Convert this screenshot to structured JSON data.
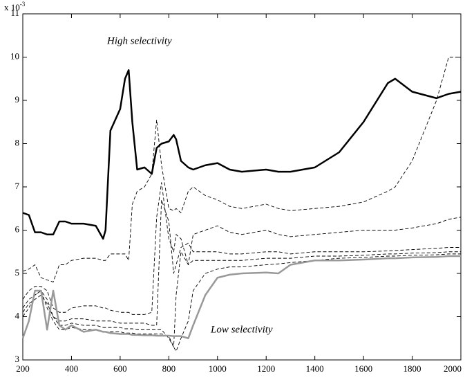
{
  "chart_data": {
    "type": "line",
    "axis_multiplier": {
      "base": "x 10",
      "exponent": "-3"
    },
    "annotations": [
      "High selectivity",
      "Low selectivity"
    ],
    "x": [
      200,
      225,
      250,
      275,
      300,
      325,
      350,
      375,
      400,
      450,
      500,
      530,
      540,
      560,
      600,
      620,
      635,
      650,
      670,
      700,
      730,
      750,
      770,
      800,
      820,
      830,
      850,
      880,
      900,
      950,
      1000,
      1050,
      1100,
      1200,
      1250,
      1300,
      1400,
      1500,
      1600,
      1700,
      1730,
      1800,
      1900,
      1950,
      2000
    ],
    "series": [
      {
        "color": "#000000",
        "style": "thick",
        "values": [
          6.4,
          6.35,
          5.95,
          5.95,
          5.9,
          5.9,
          6.2,
          6.2,
          6.15,
          6.15,
          6.1,
          5.8,
          6.0,
          8.3,
          8.8,
          9.5,
          9.7,
          8.5,
          7.4,
          7.45,
          7.3,
          7.9,
          8.0,
          8.05,
          8.2,
          8.1,
          7.6,
          7.45,
          7.4,
          7.5,
          7.55,
          7.4,
          7.35,
          7.4,
          7.35,
          7.35,
          7.45,
          7.8,
          8.5,
          9.4,
          9.5,
          9.2,
          9.05,
          9.15,
          9.2
        ]
      },
      {
        "color": "#000000",
        "style": "dashed",
        "values": [
          5.05,
          5.1,
          5.2,
          4.9,
          4.85,
          4.8,
          5.2,
          5.2,
          5.3,
          5.35,
          5.35,
          5.3,
          5.3,
          5.45,
          5.45,
          5.45,
          5.3,
          6.6,
          6.9,
          7.0,
          7.3,
          8.55,
          7.5,
          6.5,
          6.45,
          6.5,
          6.4,
          6.9,
          7.0,
          6.8,
          6.7,
          6.55,
          6.5,
          6.6,
          6.5,
          6.45,
          6.5,
          6.55,
          6.65,
          6.9,
          7.0,
          7.6,
          9.0,
          10.0,
          10.0
        ]
      },
      {
        "color": "#000000",
        "style": "dashed",
        "values": [
          4.4,
          4.6,
          4.7,
          4.7,
          4.6,
          4.2,
          4.1,
          4.1,
          4.2,
          4.25,
          4.25,
          4.2,
          4.2,
          4.15,
          4.1,
          4.1,
          4.1,
          4.05,
          4.05,
          4.05,
          4.1,
          6.3,
          7.1,
          5.8,
          5.5,
          5.9,
          5.8,
          5.2,
          5.9,
          6.0,
          6.1,
          5.95,
          5.9,
          6.0,
          5.9,
          5.85,
          5.9,
          5.95,
          6.0,
          6.0,
          6.0,
          6.05,
          6.15,
          6.25,
          6.3
        ]
      },
      {
        "color": "#000000",
        "style": "dashed",
        "values": [
          4.2,
          4.4,
          4.5,
          4.6,
          4.4,
          4.0,
          3.9,
          3.9,
          3.95,
          3.95,
          3.9,
          3.9,
          3.9,
          3.9,
          3.85,
          3.85,
          3.85,
          3.85,
          3.85,
          3.85,
          3.8,
          3.8,
          6.7,
          6.2,
          5.0,
          5.2,
          5.6,
          5.7,
          5.5,
          5.5,
          5.5,
          5.45,
          5.45,
          5.5,
          5.5,
          5.45,
          5.5,
          5.5,
          5.5,
          5.52,
          5.53,
          5.55,
          5.58,
          5.6,
          5.6
        ]
      },
      {
        "color": "#000000",
        "style": "dashed",
        "values": [
          4.1,
          4.3,
          4.4,
          4.5,
          4.3,
          4.0,
          3.8,
          3.8,
          3.85,
          3.8,
          3.8,
          3.75,
          3.75,
          3.75,
          3.75,
          3.72,
          3.72,
          3.72,
          3.7,
          3.7,
          3.7,
          3.7,
          3.7,
          3.5,
          3.3,
          4.5,
          5.5,
          5.2,
          5.3,
          5.3,
          5.3,
          5.3,
          5.3,
          5.35,
          5.35,
          5.35,
          5.4,
          5.4,
          5.42,
          5.45,
          5.45,
          5.47,
          5.48,
          5.5,
          5.5
        ]
      },
      {
        "color": "#000000",
        "style": "dashed",
        "values": [
          4.0,
          4.2,
          4.5,
          4.6,
          4.2,
          3.9,
          3.7,
          3.7,
          3.75,
          3.7,
          3.7,
          3.65,
          3.65,
          3.65,
          3.65,
          3.62,
          3.62,
          3.62,
          3.6,
          3.6,
          3.6,
          3.6,
          3.6,
          3.55,
          3.3,
          3.2,
          3.5,
          3.9,
          4.6,
          5.0,
          5.1,
          5.15,
          5.15,
          5.2,
          5.22,
          5.25,
          5.3,
          5.35,
          5.37,
          5.4,
          5.4,
          5.42,
          5.43,
          5.45,
          5.45
        ]
      },
      {
        "color": "#999999",
        "style": "thick",
        "values": [
          3.5,
          3.9,
          4.6,
          4.6,
          3.7,
          4.6,
          3.8,
          3.7,
          3.8,
          3.65,
          3.7,
          3.65,
          3.65,
          3.62,
          3.6,
          3.6,
          3.6,
          3.58,
          3.58,
          3.57,
          3.57,
          3.56,
          3.56,
          3.56,
          3.55,
          3.55,
          3.55,
          3.5,
          3.8,
          4.5,
          4.9,
          4.97,
          5.0,
          5.02,
          5.0,
          5.2,
          5.3,
          5.3,
          5.32,
          5.35,
          5.35,
          5.37,
          5.38,
          5.4,
          5.4
        ]
      }
    ],
    "xlim": [
      200,
      2000
    ],
    "xticks": [
      200,
      400,
      600,
      800,
      1000,
      1200,
      1400,
      1600,
      1800,
      2000
    ],
    "ylim": [
      3,
      11
    ],
    "yticks": [
      3,
      4,
      5,
      6,
      7,
      8,
      9,
      10,
      11
    ]
  }
}
